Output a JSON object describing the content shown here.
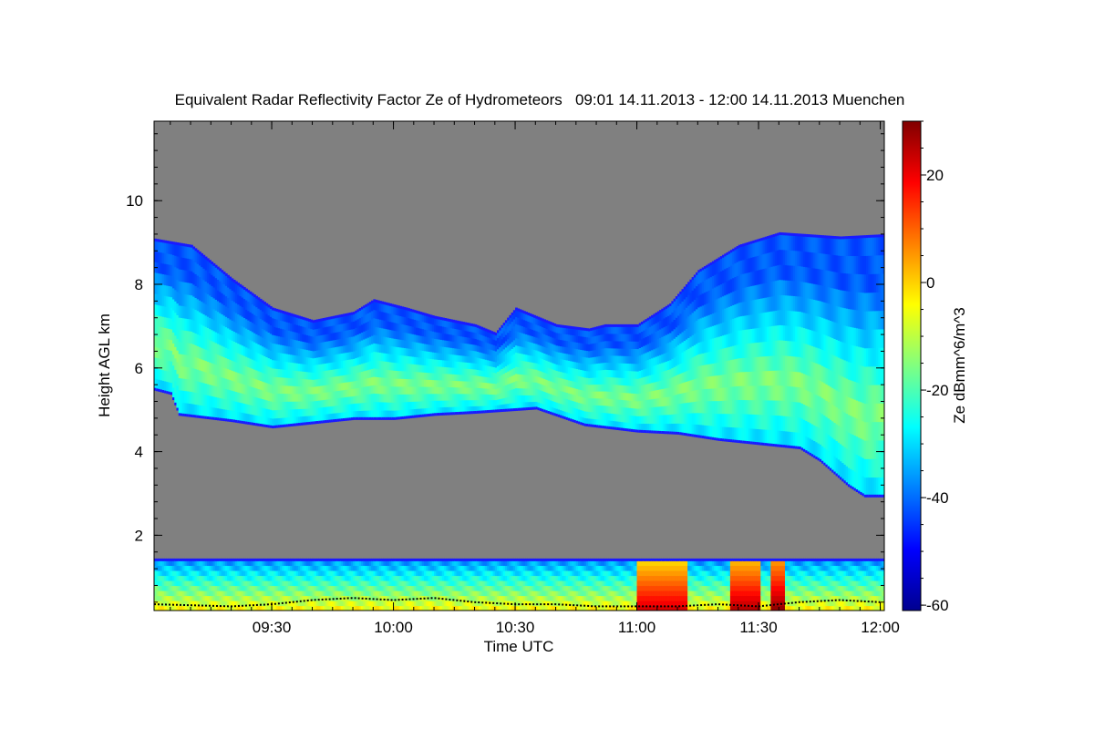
{
  "chart_data": {
    "type": "heatmap",
    "title": "Equivalent Radar Reflectivity Factor Ze of Hydrometeors   09:01 14.11.2013 - 12:00 14.11.2013 Muenchen",
    "xlabel": "Time UTC",
    "ylabel": "Height AGL km",
    "colorbar_label": "Ze dBmm^6/m^3",
    "x_ticks": [
      "09:30",
      "10:00",
      "10:30",
      "11:00",
      "11:30",
      "12:00"
    ],
    "x_tick_minutes": [
      570,
      600,
      630,
      660,
      690,
      720
    ],
    "xlim_minutes": [
      541,
      721
    ],
    "y_ticks": [
      2,
      4,
      6,
      8,
      10
    ],
    "ylim": [
      0.2,
      11.9
    ],
    "colorbar_ticks": [
      20,
      0,
      -20,
      -40,
      -60
    ],
    "colorbar_range": [
      -61,
      30
    ],
    "no_data_color": "#808080",
    "colormap": [
      "#00008f",
      "#0000ff",
      "#0080ff",
      "#00ffff",
      "#80ff80",
      "#ffff00",
      "#ff8000",
      "#ff0000",
      "#800000"
    ],
    "layers": [
      {
        "name": "upper cloud layer",
        "cloud_top_km": [
          [
            541,
            9.05
          ],
          [
            550,
            8.9
          ],
          [
            560,
            8.1
          ],
          [
            570,
            7.4
          ],
          [
            580,
            7.1
          ],
          [
            590,
            7.3
          ],
          [
            595,
            7.6
          ],
          [
            603,
            7.4
          ],
          [
            610,
            7.2
          ],
          [
            620,
            7.0
          ],
          [
            625,
            6.8
          ],
          [
            630,
            7.4
          ],
          [
            640,
            7.0
          ],
          [
            648,
            6.9
          ],
          [
            652,
            7.0
          ],
          [
            660,
            7.0
          ],
          [
            668,
            7.5
          ],
          [
            675,
            8.3
          ],
          [
            685,
            8.9
          ],
          [
            695,
            9.2
          ],
          [
            710,
            9.1
          ],
          [
            720,
            9.15
          ]
        ],
        "cloud_base_km": [
          [
            541,
            5.5
          ],
          [
            545,
            5.4
          ],
          [
            547,
            4.9
          ],
          [
            560,
            4.75
          ],
          [
            570,
            4.6
          ],
          [
            590,
            4.8
          ],
          [
            600,
            4.8
          ],
          [
            610,
            4.9
          ],
          [
            620,
            4.95
          ],
          [
            635,
            5.05
          ],
          [
            647,
            4.65
          ],
          [
            660,
            4.5
          ],
          [
            670,
            4.45
          ],
          [
            680,
            4.3
          ],
          [
            690,
            4.2
          ],
          [
            700,
            4.1
          ],
          [
            705,
            3.8
          ],
          [
            712,
            3.2
          ],
          [
            716,
            2.95
          ],
          [
            721,
            2.95
          ]
        ],
        "core_ze_dbz": -15,
        "edge_ze_dbz": -42
      },
      {
        "name": "boundary layer",
        "top_km": 1.4,
        "base_km": 0.2,
        "typical_ze_dbz": -25,
        "max_ze_dbz": 25
      }
    ],
    "precip_events": [
      {
        "start_min": 660,
        "end_min": 672,
        "max_ze_dbz": 22
      },
      {
        "start_min": 683,
        "end_min": 690,
        "max_ze_dbz": 25
      },
      {
        "start_min": 693,
        "end_min": 696,
        "max_ze_dbz": 28
      }
    ],
    "black_line_km": [
      [
        541,
        0.35
      ],
      [
        560,
        0.3
      ],
      [
        570,
        0.35
      ],
      [
        580,
        0.45
      ],
      [
        590,
        0.5
      ],
      [
        600,
        0.45
      ],
      [
        610,
        0.5
      ],
      [
        620,
        0.4
      ],
      [
        630,
        0.35
      ],
      [
        640,
        0.35
      ],
      [
        650,
        0.3
      ],
      [
        660,
        0.3
      ],
      [
        670,
        0.3
      ],
      [
        680,
        0.35
      ],
      [
        690,
        0.3
      ],
      [
        700,
        0.4
      ],
      [
        710,
        0.45
      ],
      [
        720,
        0.4
      ]
    ]
  }
}
